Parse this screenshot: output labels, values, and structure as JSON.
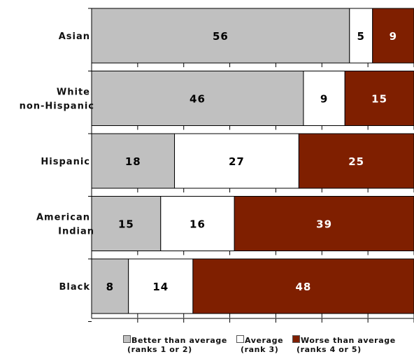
{
  "chart_data": {
    "type": "bar",
    "orientation": "horizontal",
    "stacked": true,
    "categories": [
      "Asian",
      "White non-Hispanic",
      "Hispanic",
      "American Indian",
      "Black"
    ],
    "category_label_lines": [
      [
        "Asian"
      ],
      [
        "White",
        "non-Hispanic"
      ],
      [
        "Hispanic"
      ],
      [
        "American",
        "Indian"
      ],
      [
        "Black"
      ]
    ],
    "series": [
      {
        "name": "Better than average",
        "sublabel": "(ranks 1 or 2)",
        "color": "#c0c0c0",
        "text_color": "#000000",
        "values": [
          56,
          46,
          18,
          15,
          8
        ]
      },
      {
        "name": "Average",
        "sublabel": "(rank 3)",
        "color": "#ffffff",
        "text_color": "#000000",
        "values": [
          5,
          9,
          27,
          16,
          14
        ]
      },
      {
        "name": "Worse than average",
        "sublabel": "(ranks 4 or 5)",
        "color": "#7f1f00",
        "text_color": "#ffffff",
        "values": [
          9,
          15,
          25,
          39,
          48
        ]
      }
    ],
    "xlim": [
      0,
      70
    ],
    "grid": false,
    "legend_position": "bottom"
  }
}
